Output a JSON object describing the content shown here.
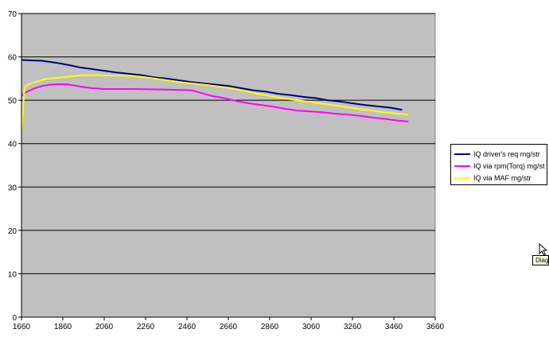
{
  "chart_data": {
    "type": "line",
    "title": "",
    "xlabel": "",
    "ylabel": "",
    "xlim": [
      1660,
      3660
    ],
    "ylim": [
      0,
      70
    ],
    "x_ticks": [
      1660,
      1860,
      2060,
      2260,
      2460,
      2660,
      2860,
      3060,
      3260,
      3460,
      3660
    ],
    "y_ticks": [
      0,
      10,
      20,
      30,
      40,
      50,
      60,
      70
    ],
    "grid": "horizontal",
    "plot_background": "#c0c0c0",
    "legend_position": "right",
    "series": [
      {
        "name": "IQ driver's req mg/str",
        "color": "#000080",
        "x": [
          1660,
          1700,
          1760,
          1820,
          1880,
          1940,
          2000,
          2060,
          2120,
          2180,
          2240,
          2300,
          2360,
          2420,
          2480,
          2540,
          2600,
          2660,
          2720,
          2780,
          2840,
          2900,
          2960,
          3020,
          3080,
          3140,
          3200,
          3260,
          3320,
          3380,
          3440,
          3500
        ],
        "y": [
          59.3,
          59.2,
          59.1,
          58.7,
          58.2,
          57.6,
          57.2,
          56.8,
          56.4,
          56.1,
          55.8,
          55.3,
          55.0,
          54.6,
          54.2,
          53.9,
          53.6,
          53.3,
          52.8,
          52.3,
          52.0,
          51.5,
          51.2,
          50.8,
          50.5,
          50.0,
          49.7,
          49.3,
          48.9,
          48.6,
          48.3,
          47.8
        ]
      },
      {
        "name": "IQ via rpm(Torq) mg/str",
        "color": "#ff00ff",
        "x": [
          1660,
          1680,
          1720,
          1760,
          1800,
          1840,
          1880,
          1940,
          2000,
          2060,
          2200,
          2320,
          2400,
          2480,
          2520,
          2580,
          2640,
          2700,
          2760,
          2820,
          2880,
          2940,
          3000,
          3060,
          3120,
          3180,
          3240,
          3300,
          3360,
          3420,
          3480,
          3530
        ],
        "y": [
          51.0,
          51.8,
          52.7,
          53.3,
          53.6,
          53.7,
          53.7,
          53.2,
          52.8,
          52.6,
          52.6,
          52.5,
          52.4,
          52.3,
          51.8,
          51.0,
          50.5,
          49.8,
          49.3,
          48.9,
          48.5,
          48.0,
          47.6,
          47.4,
          47.2,
          46.9,
          46.7,
          46.4,
          46.0,
          45.7,
          45.3,
          45.1
        ]
      },
      {
        "name": "IQ via MAF mg/str",
        "color": "#ffff00",
        "x": [
          1660,
          1675,
          1700,
          1740,
          1780,
          1840,
          1900,
          1960,
          2020,
          2080,
          2140,
          2200,
          2260,
          2320,
          2380,
          2440,
          2500,
          2560,
          2620,
          2680,
          2740,
          2800,
          2860,
          2920,
          2980,
          3040,
          3100,
          3160,
          3220,
          3280,
          3340,
          3400,
          3460,
          3530
        ],
        "y": [
          43.0,
          53.0,
          53.8,
          54.4,
          54.9,
          55.2,
          55.5,
          55.8,
          55.8,
          55.7,
          55.7,
          55.6,
          55.3,
          54.9,
          54.5,
          54.1,
          53.8,
          53.5,
          53.1,
          52.7,
          52.1,
          51.5,
          51.0,
          50.5,
          50.1,
          49.7,
          49.3,
          48.9,
          48.5,
          48.1,
          47.7,
          47.3,
          47.0,
          46.7
        ]
      }
    ]
  },
  "overlay": {
    "tooltip_text": "Diagr",
    "cursor_icon": "mouse-pointer-icon"
  }
}
